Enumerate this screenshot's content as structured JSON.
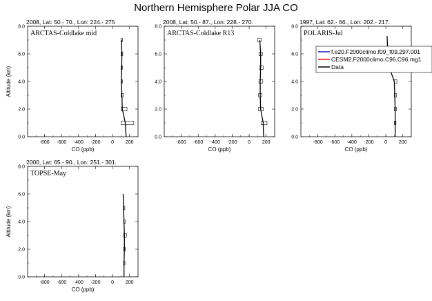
{
  "figure_title": "Northern Hemisphere Polar JJA CO",
  "colors": {
    "model1": "#1a1ab8",
    "model2": "#e41a1c",
    "data": "#000000"
  },
  "legend": {
    "placement": "right, over the third panel",
    "entries": [
      {
        "label": "f.e20.F2000climo.f09_f09.297.001",
        "color_key": "model1"
      },
      {
        "label": "CESM2.F2000climo.C96.C96.mg1",
        "color_key": "model2"
      },
      {
        "label": "Data",
        "color_key": "data"
      }
    ]
  },
  "chart_data": [
    {
      "type": "line",
      "title": "2008, Lat: 50.- 70., Lon: 224.- 275",
      "inset_label": "ARCTAS-Coldlake mid",
      "xlabel": "CO (ppb)",
      "ylabel": "Altitude (km)",
      "xlim": [
        -1000,
        300
      ],
      "ylim": [
        0,
        8
      ],
      "xticks": [
        "-800",
        "-600",
        "-400",
        "-200",
        "0",
        "200"
      ],
      "yticks": [
        "0.0",
        "2.0",
        "4.0",
        "6.0",
        "8.0"
      ],
      "grid": false,
      "series": [
        {
          "name": "Data",
          "x": [
            160,
            150,
            115,
            110,
            105,
            108,
            110,
            105
          ],
          "y": [
            0.0,
            1.0,
            2.0,
            3.0,
            4.0,
            5.0,
            6.0,
            7.0
          ]
        }
      ],
      "error_boxes": [
        {
          "y": 1.0,
          "x_low": 100,
          "x_high": 250
        },
        {
          "y": 2.0,
          "x_low": 100,
          "x_high": 170
        },
        {
          "y": 3.0,
          "x_low": 100,
          "x_high": 130
        },
        {
          "y": 4.0,
          "x_low": 100,
          "x_high": 115
        },
        {
          "y": 5.0,
          "x_low": 100,
          "x_high": 115
        },
        {
          "y": 6.0,
          "x_low": 100,
          "x_high": 120
        },
        {
          "y": 7.0,
          "x_low": 100,
          "x_high": 115
        }
      ]
    },
    {
      "type": "line",
      "title": "2008, Lat: 50.- 87., Lon: 228.- 270.",
      "inset_label": "ARCTAS-Coldlake R13",
      "xlabel": "CO (ppb)",
      "ylabel": "",
      "xlim": [
        -1000,
        300
      ],
      "ylim": [
        0,
        8
      ],
      "xticks": [
        "-800",
        "-600",
        "-400",
        "-200",
        "0",
        "200"
      ],
      "yticks": [
        "0.0",
        "2.0",
        "4.0",
        "6.0",
        "8.0"
      ],
      "grid": false,
      "series": [
        {
          "name": "Data",
          "x": [
            170,
            165,
            135,
            130,
            130,
            135,
            135,
            125
          ],
          "y": [
            0.0,
            1.0,
            2.0,
            3.0,
            4.0,
            5.0,
            6.0,
            7.0
          ]
        }
      ],
      "error_boxes": [
        {
          "y": 1.0,
          "x_low": 140,
          "x_high": 210
        },
        {
          "y": 2.0,
          "x_low": 110,
          "x_high": 165
        },
        {
          "y": 3.0,
          "x_low": 110,
          "x_high": 150
        },
        {
          "y": 4.0,
          "x_low": 115,
          "x_high": 160
        },
        {
          "y": 5.0,
          "x_low": 120,
          "x_high": 165
        },
        {
          "y": 6.0,
          "x_low": 115,
          "x_high": 155
        },
        {
          "y": 7.0,
          "x_low": 100,
          "x_high": 140
        }
      ]
    },
    {
      "type": "line",
      "title": "1997, Lat: 62.- 66., Lon: 202.- 217.",
      "inset_label": "POLARIS-Jul",
      "xlabel": "CO (ppb)",
      "ylabel": "",
      "xlim": [
        -1000,
        300
      ],
      "ylim": [
        0,
        8
      ],
      "xticks": [
        "-800",
        "-600",
        "-400",
        "-200",
        "0",
        "200"
      ],
      "yticks": [
        "0.0",
        "2.0",
        "4.0",
        "6.0",
        "8.0"
      ],
      "grid": false,
      "series": [
        {
          "name": "Data",
          "x": [
            110,
            110,
            110,
            100,
            30,
            20,
            15
          ],
          "y": [
            0.0,
            1.0,
            2.0,
            4.0,
            5.2,
            6.5,
            7.3
          ]
        }
      ],
      "error_boxes": [
        {
          "y": 1.0,
          "x_low": 100,
          "x_high": 120
        },
        {
          "y": 2.0,
          "x_low": 100,
          "x_high": 125
        },
        {
          "y": 3.0,
          "x_low": 100,
          "x_high": 125
        },
        {
          "y": 4.0,
          "x_low": 100,
          "x_high": 130
        }
      ]
    },
    {
      "type": "line",
      "title": "2000, Lat: 65.- 90., Lon: 251.- 301.",
      "inset_label": "TOPSE-May",
      "xlabel": "CO (ppb)",
      "ylabel": "Altitude (km)",
      "xlim": [
        -1000,
        300
      ],
      "ylim": [
        0,
        8
      ],
      "xticks": [
        "-800",
        "-600",
        "-400",
        "-200",
        "0",
        "200"
      ],
      "yticks": [
        "0.0",
        "2.0",
        "4.0",
        "6.0",
        "8.0"
      ],
      "grid": false,
      "series": [
        {
          "name": "Data",
          "x": [
            135,
            135,
            140,
            140,
            135,
            130,
            125
          ],
          "y": [
            0.0,
            1.0,
            2.0,
            3.0,
            4.0,
            5.0,
            6.0
          ]
        }
      ],
      "error_boxes": [
        {
          "y": 1.0,
          "x_low": 130,
          "x_high": 145
        },
        {
          "y": 2.0,
          "x_low": 130,
          "x_high": 150
        },
        {
          "y": 3.0,
          "x_low": 130,
          "x_high": 165
        },
        {
          "y": 4.0,
          "x_low": 130,
          "x_high": 150
        },
        {
          "y": 5.0,
          "x_low": 125,
          "x_high": 145
        }
      ]
    }
  ]
}
